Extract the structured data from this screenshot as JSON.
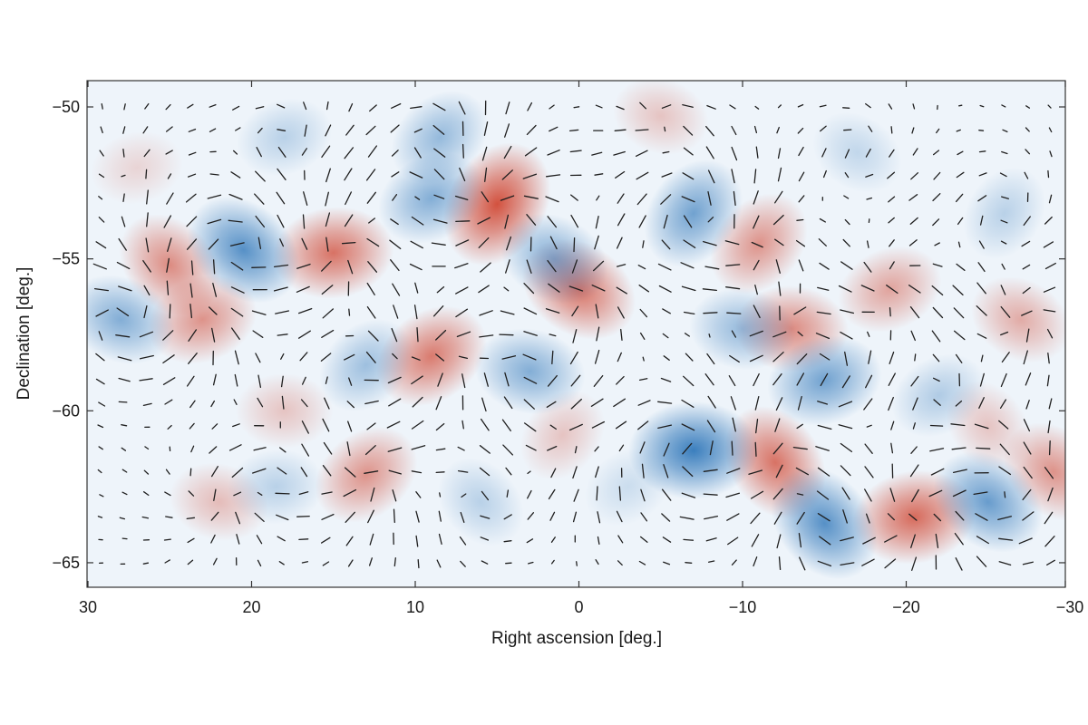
{
  "chart_data": {
    "type": "heatmap",
    "title": "",
    "xlabel": "Right ascension [deg.]",
    "ylabel": "Declination [deg.]",
    "xlim": [
      30,
      -30
    ],
    "ylim": [
      -66,
      -49.2
    ],
    "x_ticks": [
      30,
      20,
      10,
      0,
      -10,
      -20,
      -30
    ],
    "x_tick_labels": [
      "30",
      "20",
      "10",
      "0",
      "−10",
      "−20",
      "−30"
    ],
    "y_ticks": [
      -50,
      -55,
      -60,
      -65
    ],
    "y_tick_labels": [
      "−50",
      "−55",
      "−60",
      "−65"
    ],
    "grid": false,
    "colors": {
      "positive": "#d0432e",
      "negative": "#2b74b8",
      "background": "#eef4fa"
    },
    "blobs": [
      {
        "ra": 5,
        "dec": -53.2,
        "value": 1.0
      },
      {
        "ra": 15,
        "dec": -54.8,
        "value": 0.8
      },
      {
        "ra": 25,
        "dec": -55.2,
        "value": 0.65
      },
      {
        "ra": 23,
        "dec": -57,
        "value": 0.6
      },
      {
        "ra": 0,
        "dec": -56,
        "value": 0.8
      },
      {
        "ra": 9,
        "dec": -58.2,
        "value": 0.75
      },
      {
        "ra": -5,
        "dec": -50.3,
        "value": 0.3
      },
      {
        "ra": -11,
        "dec": -54.5,
        "value": 0.6
      },
      {
        "ra": -13,
        "dec": -57.3,
        "value": 0.65
      },
      {
        "ra": -12,
        "dec": -61.7,
        "value": 0.8
      },
      {
        "ra": -20.5,
        "dec": -63.5,
        "value": 0.85
      },
      {
        "ra": -29,
        "dec": -62,
        "value": 0.6
      },
      {
        "ra": -19,
        "dec": -56,
        "value": 0.5
      },
      {
        "ra": -27,
        "dec": -57,
        "value": 0.45
      },
      {
        "ra": 13,
        "dec": -62.1,
        "value": 0.6
      },
      {
        "ra": 22,
        "dec": -63,
        "value": 0.35
      },
      {
        "ra": 1,
        "dec": -60.8,
        "value": 0.3
      },
      {
        "ra": 18,
        "dec": -60,
        "value": 0.3
      },
      {
        "ra": -25,
        "dec": -60.5,
        "value": 0.3
      },
      {
        "ra": 27,
        "dec": -52,
        "value": 0.2
      },
      {
        "ra": 20.5,
        "dec": -54.7,
        "value": -0.85
      },
      {
        "ra": 9,
        "dec": -53,
        "value": -0.6
      },
      {
        "ra": 1.5,
        "dec": -55,
        "value": -0.6
      },
      {
        "ra": 8.5,
        "dec": -51,
        "value": -0.5
      },
      {
        "ra": 3,
        "dec": -58.7,
        "value": -0.6
      },
      {
        "ra": -7,
        "dec": -53.5,
        "value": -0.7
      },
      {
        "ra": -7,
        "dec": -61.3,
        "value": -1.0
      },
      {
        "ra": -15,
        "dec": -63.7,
        "value": -0.85
      },
      {
        "ra": -15,
        "dec": -59,
        "value": -0.7
      },
      {
        "ra": -25,
        "dec": -63,
        "value": -0.75
      },
      {
        "ra": -22,
        "dec": -59.5,
        "value": -0.35
      },
      {
        "ra": 28,
        "dec": -57,
        "value": -0.6
      },
      {
        "ra": 13,
        "dec": -58.5,
        "value": -0.45
      },
      {
        "ra": -10,
        "dec": -57.3,
        "value": -0.5
      },
      {
        "ra": -26,
        "dec": -53.5,
        "value": -0.3
      },
      {
        "ra": 18.5,
        "dec": -62.5,
        "value": -0.3
      },
      {
        "ra": 6,
        "dec": -63,
        "value": -0.3
      },
      {
        "ra": 18,
        "dec": -51,
        "value": -0.3
      },
      {
        "ra": -17,
        "dec": -51.5,
        "value": -0.25
      },
      {
        "ra": -3,
        "dec": -62.5,
        "value": -0.2
      }
    ],
    "vector_field": {
      "description": "headless polarization vectors on a regular RA/Dec grid, drawn by the script"
    }
  }
}
